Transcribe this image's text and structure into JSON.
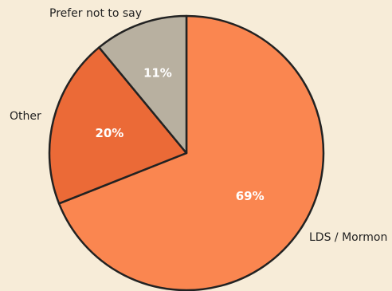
{
  "chart_data": {
    "type": "pie",
    "title": "",
    "slices": [
      {
        "label": "LDS / Mormon",
        "value": 69,
        "value_label": "69%",
        "color": "#fa8650"
      },
      {
        "label": "Other",
        "value": 20,
        "value_label": "20%",
        "color": "#eb6a37"
      },
      {
        "label": "Prefer not to say",
        "value": 11,
        "value_label": "11%",
        "color": "#b8b0a0"
      }
    ],
    "start_angle_deg": 0,
    "direction": "clockwise",
    "outline_color": "#222222",
    "background_color": "#f7ecd8"
  }
}
